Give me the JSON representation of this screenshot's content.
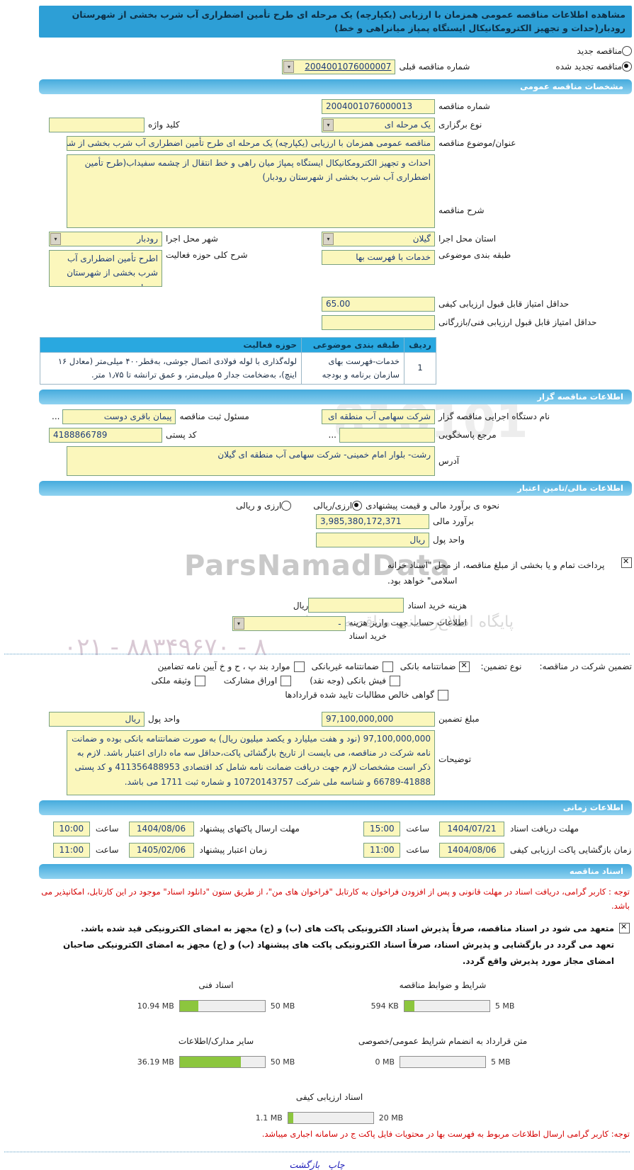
{
  "watermark": {
    "brand": "ParsNamadData",
    "digits": "810101",
    "tagline": "پایگاه اطلاع‌رسانی مناقصه و مزایده",
    "phone": "۰۲۱ - ۸۸۳۴۹۶۷۰ - ۸"
  },
  "header": {
    "title": "مشاهده اطلاعات مناقصه عمومی همزمان با ارزیابی (یکپارچه) یک مرحله ای طرح تأمین اضطراری آب شرب بخشی از شهرستان رودبار(حدات و تجهیز الکترومکانیکال ایستگاه پمپاز میانراهی و خط)"
  },
  "status": {
    "new_label": "مناقصه جدید",
    "new_selected": false,
    "renewed_label": "مناقصه تجدید شده",
    "renewed_selected": true,
    "prev_label": "شماره مناقصه قبلی",
    "prev_value": "2004001076000007"
  },
  "general": {
    "title": "مشخصات مناقصه عمومی",
    "number_label": "شماره مناقصه",
    "number_value": "2004001076000013",
    "type_label": "نوع برگزاری",
    "type_value": "یک مرحله ای",
    "keyword_label": "کلید واژه",
    "keyword_value": "",
    "subject_label": "عنوان/موضوع مناقصه",
    "subject_value": "مناقصه عمومی همزمان با ارزیابی (یکپارچه) یک مرحله ای طرح تأمین اضطراری آب شرب بخشی از شه",
    "desc_label": "شرح مناقصه",
    "desc_value": "احداث و تجهیز الکترومکانیکال ایستگاه پمپاژ میان راهی و خط انتقال از چشمه سفیداب(طرح تأمین اضطراری آب شرب بخشی از شهرستان رودبار)",
    "province_label": "استان محل اجرا",
    "province_value": "گیلان",
    "city_label": "شهر محل اجرا",
    "city_value": "رودبار",
    "category_label": "طبقه بندی موضوعی",
    "category_value": "خدمات با فهرست بها",
    "activity_label": "شرح کلی حوزه فعالیت",
    "activity_value": "اطرح تأمین اضطراری آب شرب بخشی از شهرستان رودبار",
    "min_quality_label": "حداقل امتیاز قابل قبول ارزیابی کیفی",
    "min_quality_value": "65.00",
    "min_tech_label": "حداقل امتیاز قابل قبول ارزیابی فنی/بازرگانی",
    "min_tech_value": "",
    "table": {
      "headers": [
        "ردیف",
        "طبقه بندی موضوعی",
        "حوزه فعالیت"
      ],
      "rows": [
        {
          "no": "1",
          "category": "خدمات-فهرست بهای سازمان برنامه و بودجه",
          "activity": "لوله‌گذاری با لوله فولادی اتصال جوشی، به‌قطر۴۰۰ میلی‌متر (معادل ۱۶ اینچ)، به‌ضخامت جدار ۵ میلی‌متر، و عمق ترانشه تا ۱٫۷۵ متر."
        }
      ]
    }
  },
  "agency": {
    "title": "اطلاعات مناقصه گزار",
    "browse_label": "...",
    "name_label": "نام دستگاه اجرایی مناقصه گزار",
    "name_value": "شرکت سهامی آب منطقه ای",
    "registrar_label": "مسئول ثبت مناقصه",
    "registrar_value": "پیمان باقری دوست",
    "contact_label": "مرجع پاسخگویی",
    "contact_value": "",
    "postal_label": "کد پستی",
    "postal_value": "4188866789",
    "address_label": "آدرس",
    "address_value": "رشت- بلوار امام خمینی- شرکت سهامی آب منطقه ای گیلان"
  },
  "financial": {
    "title": "اطلاعات مالی/تامین اعتبار",
    "method_label": "نحوه ی برآورد مالی و قیمت پیشنهادی",
    "method_option1": "ارزی/ریالی",
    "method_option1_selected": true,
    "method_option2": "ارزی و ریالی",
    "method_option2_selected": false,
    "estimate_label": "برآورد مالی",
    "estimate_value": "3,985,380,172,371",
    "currency_label": "واحد پول",
    "currency_value": "ریال",
    "treasury_checked": true,
    "treasury_note": "پرداخت تمام و یا بخشی از مبلغ مناقصه، از محل \"اسناد خزانه اسلامی\" خواهد بود.",
    "doc_fee_label": "هزینه خرید اسناد",
    "doc_fee_value": "",
    "doc_fee_unit": "ریال",
    "account_label_1": "اطلاعات حساب جهت واریز هزینه",
    "account_label_2": "خرید اسناد",
    "account_value": "-",
    "guarantee_label": "تضمین شرکت در مناقصه:",
    "guarantee_type_label": "نوع تضمین:",
    "g1": "ضمانتنامه بانکی",
    "g1_checked": true,
    "g2": "ضمانتنامه غیربانکی",
    "g2_checked": false,
    "g3": "موارد بند پ ، ح و خ آیین نامه تضامین",
    "g3_checked": false,
    "g4": "فیش بانکی (وجه نقد)",
    "g4_checked": false,
    "g5": "اوراق مشارکت",
    "g5_checked": false,
    "g6": "وثیقه ملکی",
    "g6_checked": false,
    "g7": "گواهی خالص مطالبات تایید شده قراردادها",
    "g7_checked": false,
    "amount_label": "مبلغ تضمین",
    "amount_value": "97,100,000,000",
    "currency2_label": "واحد پول",
    "currency2_value": "ریال",
    "notes_label": "توضیحات",
    "notes_value": "97,100,000,000 (نود و هفت میلیارد و یکصد میلیون ریال) به صورت ضمانتنامه بانکی بوده و ضمانت نامه شرکت در مناقصه، می بایست از تاریخ بازگشائی پاکت،حداقل سه ماه دارای اعتبار باشد. لازم به ذکر است مشخصات لازم جهت دریافت ضمانت نامه شامل کد اقتصادی 411356488953 و کد پستی 41888-66789 و شناسه ملی شرکت 10720143757 و شماره ثبت 1711 می باشد."
  },
  "timing": {
    "title": "اطلاعات زمانی",
    "hour_label": "ساعت",
    "r1_label": "مهلت دریافت اسناد",
    "r1_date": "1404/07/21",
    "r1_time": "15:00",
    "r2_label": "مهلت ارسال پاکتهای پیشنهاد",
    "r2_date": "1404/08/06",
    "r2_time": "10:00",
    "r3_label": "زمان بازگشایی پاکت ارزیابی کیفی",
    "r3_date": "1404/08/06",
    "r3_time": "11:00",
    "r4_label": "زمان اعتبار پیشنهاد",
    "r4_date": "1405/02/06",
    "r4_time": "11:00"
  },
  "documents": {
    "title": "اسناد مناقصه",
    "notice": "توجه : کاربر گرامی، دریافت اسناد در مهلت قانونی و پس از افزودن فراخوان به کارتابل \"فراخوان های من\"، از طریق ستون \"دانلود اسناد\" موجود در این کارتابل، امکانپذیر می باشد.",
    "pledge_checked": true,
    "pledge_line1": "متعهد می شود در اسناد مناقصه، صرفاً پذیرش اسناد الکترونیکی پاکت های (ب) و (ج) مجهز به امضای الکترونیکی قید شده باشد.",
    "pledge_line2": "تعهد می گردد در بازگشایی و پذیرش اسناد، صرفاً اسناد الکترونیکی پاکت های پیشنهاد (ب) و (ج) مجهز به امضای الکترونیکی صاحبان امضای مجاز مورد پذیرش واقع گردد.",
    "files": [
      {
        "label": "شرایط و ضوابط مناقصه",
        "current": "594 KB",
        "max": "5 MB",
        "percent": 12
      },
      {
        "label": "اسناد فنی",
        "current": "10.94 MB",
        "max": "50 MB",
        "percent": 22
      },
      {
        "label": "متن قرارداد به انضمام شرایط عمومی/خصوصی",
        "current": "0 MB",
        "max": "5 MB",
        "percent": 0
      },
      {
        "label": "سایر مدارک/اطلاعات",
        "current": "36.19 MB",
        "max": "50 MB",
        "percent": 72
      },
      {
        "label": "اسناد ارزیابی کیفی",
        "current": "1.1 MB",
        "max": "20 MB",
        "percent": 6
      }
    ],
    "bottom_notice": "توجه: کاربر گرامی ارسال اطلاعات مربوط به فهرست بها در محتویات فایل پاکت ج در سامانه اجباری میباشد."
  },
  "footer": {
    "print_label": "چاپ",
    "back_label": "بازگشت"
  }
}
